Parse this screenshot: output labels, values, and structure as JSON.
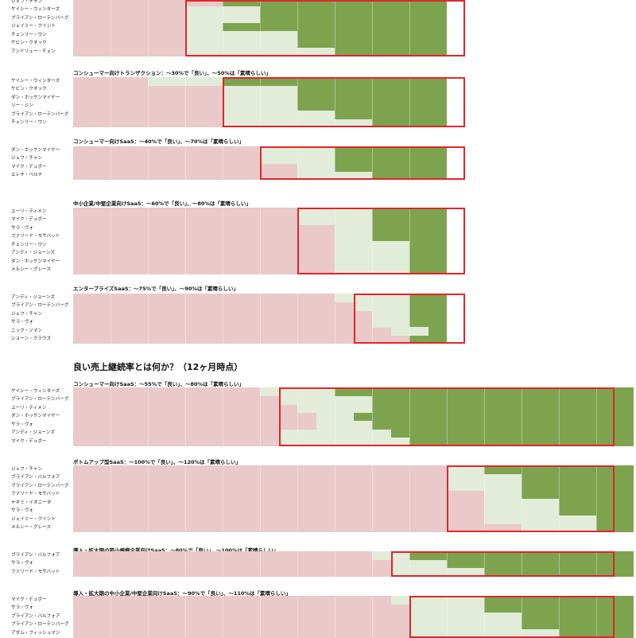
{
  "colors": {
    "poor": "#e9c9ca",
    "good": "#e2ecd9",
    "great": "#7da34e",
    "benchmark_box": "#e0262b"
  },
  "section_heading": "良い売上継続率とは何か？（12ヶ月時点）",
  "chart_data": [
    {
      "type": "heatmap",
      "title": "",
      "columns": 10,
      "benchmark": {
        "good_col": 3,
        "great_col": 8
      },
      "rows": [
        {
          "name": "ジェフ・チャン",
          "good": 4,
          "great": 4
        },
        {
          "name": "ケイシー・ウィンターズ",
          "good": 3,
          "great": 5
        },
        {
          "name": "ブライアン・ローテンバーグ",
          "good": 3,
          "great": 5
        },
        {
          "name": "ジェイミー・クイント",
          "good": 3,
          "great": 4
        },
        {
          "name": "チェンリー・ワン",
          "good": 3,
          "great": 6
        },
        {
          "name": "ケビン・クオック",
          "good": 3,
          "great": 6
        },
        {
          "name": "アンドリュー・チェン",
          "good": 3,
          "great": 7
        }
      ]
    },
    {
      "type": "heatmap",
      "title": "コンシューマー向けトランザクション：～30%で「良い」、～50%は「素晴らしい」",
      "columns": 10,
      "benchmark": {
        "good_col": 4,
        "great_col": 8
      },
      "rows": [
        {
          "name": "ケイシー・ウィンターズ",
          "good": 2,
          "great": 4
        },
        {
          "name": "ケビン・クオック",
          "good": 4,
          "great": 6
        },
        {
          "name": "ダン・ホッケンマイヤー",
          "good": 4,
          "great": 6
        },
        {
          "name": "リー・ジン",
          "good": 4,
          "great": 6
        },
        {
          "name": "ブライアン・ローテンバーグ",
          "good": 4,
          "great": 7
        },
        {
          "name": "チェンリー・ワン",
          "good": 4,
          "great": 8
        }
      ]
    },
    {
      "type": "heatmap",
      "title": "コンシューマー向けSaaS：～40%で「良い」、～70%は「素晴らしい」",
      "columns": 10,
      "benchmark": {
        "good_col": 5,
        "great_col": 8
      },
      "rows": [
        {
          "name": "ダン・ホッケンマイヤー",
          "good": 5,
          "great": 7
        },
        {
          "name": "ジェフ・チャン",
          "good": 5,
          "great": 7
        },
        {
          "name": "マイク・デュボー",
          "good": 6,
          "great": 7
        },
        {
          "name": "エレナ・ベルナ",
          "good": 6,
          "great": 8
        }
      ]
    },
    {
      "type": "heatmap",
      "title": "中小企業/中堅企業向けSaaS：～60%で「良い」、～80%は「素晴らしい」",
      "columns": 10,
      "benchmark": {
        "good_col": 6,
        "great_col": 8
      },
      "rows": [
        {
          "name": "ユーリ・ティメン",
          "good": 6,
          "great": 8
        },
        {
          "name": "マイク・デュボー",
          "good": 6,
          "great": 8
        },
        {
          "name": "サラ・ヴォ",
          "good": 7,
          "great": 8
        },
        {
          "name": "ファリード・モサバット",
          "good": 7,
          "great": 8
        },
        {
          "name": "チェンリー・ワン",
          "good": 7,
          "great": 9
        },
        {
          "name": "アンディ・ジョーンズ",
          "good": 7,
          "great": 9
        },
        {
          "name": "ダン・ホッケンマイヤー",
          "good": 7,
          "great": 9
        },
        {
          "name": "メルシー・グレース",
          "good": 7,
          "great": 9
        }
      ]
    },
    {
      "type": "heatmap",
      "title": "エンタープライズSaaS：～75%で「良い」、～90%は「素晴らしい」",
      "columns": 10,
      "benchmark": {
        "good_col": 7.5,
        "great_col": 9
      },
      "rows": [
        {
          "name": "アンディ・ジョーンズ",
          "good": 7,
          "great": 9
        },
        {
          "name": "ブライアン・ローテンバーグ",
          "good": 7.5,
          "great": 9
        },
        {
          "name": "ジェフ・チャン",
          "good": 8,
          "great": 9
        },
        {
          "name": "サラ・ヴォ",
          "good": 8,
          "great": 9
        },
        {
          "name": "ニック・ソマン",
          "good": 8.5,
          "great": 9.5
        },
        {
          "name": "ショーン・クラウズ",
          "good": 9,
          "great": 9
        }
      ]
    },
    {
      "type": "heatmap",
      "title": "コンシューマー向けSaaS：～55%で「良い」、～80%は「素晴らしい」",
      "columns": 15,
      "benchmark": {
        "good_col": 5.5,
        "great_col": 14
      },
      "rows": [
        {
          "name": "ケイシー・ウィンターズ",
          "good": 5,
          "great": 7
        },
        {
          "name": "ブライアン・ローテンバーグ",
          "good": 5.5,
          "great": 8
        },
        {
          "name": "ユーリ・ティメン",
          "good": 6,
          "great": 8
        },
        {
          "name": "ダン・ホッケンマイヤー",
          "good": 6.5,
          "great": 7.5
        },
        {
          "name": "サラ・ヴォ",
          "good": 6.5,
          "great": 8
        },
        {
          "name": "アンディ・ジョーンズ",
          "good": 5.5,
          "great": 8.5
        },
        {
          "name": "マイク・デュボー",
          "good": 5.5,
          "great": 9
        }
      ]
    },
    {
      "type": "heatmap",
      "title": "ボトムアップ型SaaS：～100%で「良い」、～120%は「素晴らしい」",
      "columns": 15,
      "benchmark": {
        "good_col": 10,
        "great_col": 14
      },
      "rows": [
        {
          "name": "ジェフ・チャン",
          "good": 10,
          "great": 11
        },
        {
          "name": "ブライアン・バルフォア",
          "good": 10,
          "great": 12
        },
        {
          "name": "ブライアン・ローテンバーグ",
          "good": 10,
          "great": 12
        },
        {
          "name": "ファリード・モサバット",
          "good": 11,
          "great": 12
        },
        {
          "name": "ナオミ・イオニータ",
          "good": 11,
          "great": 13
        },
        {
          "name": "サラ・ヴォ",
          "good": 11,
          "great": 13
        },
        {
          "name": "ジェイミー・クイント",
          "good": 11,
          "great": 14
        },
        {
          "name": "メルシー・グレース",
          "good": 12,
          "great": 14
        }
      ]
    },
    {
      "type": "heatmap",
      "title": "導入・拡大期の超小規模企業向けSaaS：～80%で「良い」、～100%は「素晴らしい」",
      "columns": 15,
      "benchmark": {
        "good_col": 8.5,
        "great_col": 14
      },
      "rows": [
        {
          "name": "ブライアン・バルフォア",
          "good": 8,
          "great": 9
        },
        {
          "name": "サラ・ヴォ",
          "good": 8.5,
          "great": 10
        },
        {
          "name": "ファリード・モサバット",
          "good": 8.5,
          "great": 11
        }
      ]
    },
    {
      "type": "heatmap",
      "title": "導入・拡大期の中小企業/中堅企業向けSaaS：～90%で「良い」、～110%は「素晴らしい」",
      "columns": 15,
      "benchmark": {
        "good_col": 9,
        "great_col": 14
      },
      "rows": [
        {
          "name": "マイク・デュボー",
          "good": 8.5,
          "great": 11
        },
        {
          "name": "サラ・ヴォ",
          "good": 9,
          "great": 11
        },
        {
          "name": "ブライアン・バルフォア",
          "good": 9,
          "great": 12
        },
        {
          "name": "ブライアン・ローテンバーグ",
          "good": 9,
          "great": 12
        },
        {
          "name": "アダム・フィッシュマン",
          "good": 9,
          "great": 13
        }
      ]
    }
  ]
}
